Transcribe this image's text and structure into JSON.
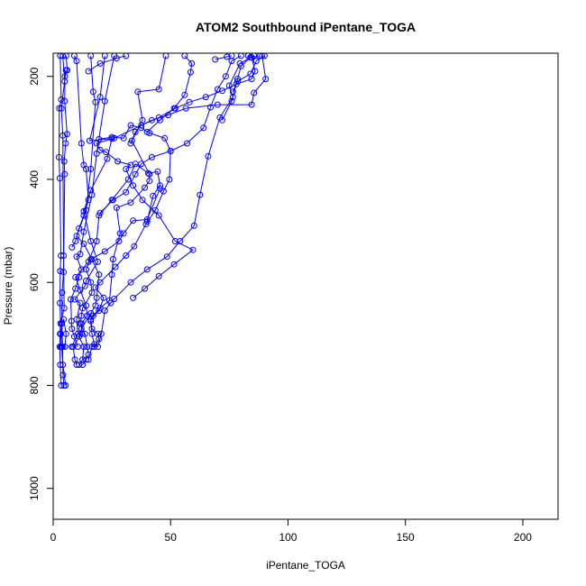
{
  "chart_data": {
    "type": "line",
    "title": "ATOM2 Southbound iPentane_TOGA",
    "xlabel": "iPentane_TOGA",
    "ylabel": "Pressure (mbar)",
    "xlim": [
      0,
      215
    ],
    "ylim": [
      1060,
      155
    ],
    "y_inverted": true,
    "xticks": [
      0,
      50,
      100,
      150,
      200
    ],
    "yticks": [
      200,
      400,
      600,
      800,
      1000
    ],
    "grid": false,
    "colors": {
      "series": "#0000ff",
      "axis": "#000000"
    },
    "series": [
      {
        "values": [
          [
            5.3,
            800
          ],
          [
            4.1,
            760
          ],
          [
            3.6,
            725
          ],
          [
            3.2,
            700
          ],
          [
            2.9,
            640
          ],
          [
            3.0,
            578
          ],
          [
            3.3,
            548
          ],
          [
            2.8,
            398
          ],
          [
            2.5,
            357
          ],
          [
            2.6,
            262
          ],
          [
            3.4,
            245
          ],
          [
            3.0,
            160
          ]
        ]
      },
      {
        "values": [
          [
            4.6,
            800
          ],
          [
            4.2,
            780
          ],
          [
            4.0,
            725
          ],
          [
            3.7,
            680
          ],
          [
            3.8,
            620
          ],
          [
            4.4,
            580
          ],
          [
            4.9,
            390
          ],
          [
            4.7,
            365
          ],
          [
            5.3,
            330
          ],
          [
            5.9,
            312
          ],
          [
            4.9,
            248
          ],
          [
            5.0,
            200
          ],
          [
            6.0,
            188
          ],
          [
            5.5,
            160
          ]
        ]
      },
      {
        "values": [
          [
            3.4,
            800
          ],
          [
            3.0,
            760
          ],
          [
            2.8,
            725
          ],
          [
            2.9,
            700
          ],
          [
            3.1,
            680
          ],
          [
            4.7,
            650
          ],
          [
            4.4,
            548
          ],
          [
            4.1,
            315
          ],
          [
            3.5,
            262
          ],
          [
            5.4,
            188
          ],
          [
            4.9,
            210
          ],
          [
            4.1,
            160
          ]
        ]
      },
      {
        "values": [
          [
            5.0,
            725
          ],
          [
            5.5,
            700
          ],
          [
            4.5,
            672
          ],
          [
            3.6,
            680
          ],
          [
            3.3,
            725
          ]
        ]
      },
      {
        "values": [
          [
            7.9,
            725
          ],
          [
            10.5,
            700
          ],
          [
            10.0,
            672
          ],
          [
            11.5,
            640
          ],
          [
            9.2,
            633
          ],
          [
            13.5,
            607
          ],
          [
            14.0,
            597
          ],
          [
            19.0,
            560
          ],
          [
            16.0,
            520
          ],
          [
            13.0,
            462
          ],
          [
            16.0,
            421
          ],
          [
            23.0,
            360
          ],
          [
            25.0,
            321
          ],
          [
            15.5,
            325
          ],
          [
            20.0,
            240
          ],
          [
            22.0,
            160
          ]
        ]
      },
      {
        "values": [
          [
            10.0,
            760
          ],
          [
            9.2,
            750
          ],
          [
            8.5,
            725
          ],
          [
            12.0,
            700
          ],
          [
            12.0,
            680
          ],
          [
            14.5,
            665
          ],
          [
            14.0,
            645
          ],
          [
            11.5,
            615
          ],
          [
            9.5,
            590
          ],
          [
            15.0,
            560
          ],
          [
            18.5,
            520
          ],
          [
            19.5,
            470
          ],
          [
            25.0,
            440
          ],
          [
            32.0,
            400
          ],
          [
            35.0,
            370
          ],
          [
            40.5,
            388
          ],
          [
            44.5,
            385
          ],
          [
            45.5,
            412
          ],
          [
            42.5,
            432
          ],
          [
            40.0,
            482
          ]
        ]
      },
      {
        "values": [
          [
            11.0,
            760
          ],
          [
            12.5,
            750
          ],
          [
            13.0,
            725
          ],
          [
            11.0,
            705
          ],
          [
            12.0,
            690
          ],
          [
            16.0,
            660
          ],
          [
            18.0,
            645
          ],
          [
            18.5,
            630
          ],
          [
            19.5,
            585
          ],
          [
            16.5,
            555
          ],
          [
            13.0,
            525
          ],
          [
            10.0,
            510
          ],
          [
            14.0,
            460
          ],
          [
            16.0,
            380
          ],
          [
            18.0,
            250
          ],
          [
            17.0,
            230
          ],
          [
            16.0,
            160
          ]
        ]
      },
      {
        "values": [
          [
            12.5,
            760
          ],
          [
            14.0,
            750
          ],
          [
            15.0,
            740
          ],
          [
            14.5,
            725
          ],
          [
            13.5,
            700
          ],
          [
            11.5,
            680
          ],
          [
            12.0,
            665
          ],
          [
            12.5,
            650
          ],
          [
            16.5,
            620
          ],
          [
            16.0,
            600
          ],
          [
            14.0,
            575
          ],
          [
            16.0,
            555
          ],
          [
            22.0,
            540
          ],
          [
            28.0,
            520
          ],
          [
            30.0,
            505
          ],
          [
            34.0,
            480
          ],
          [
            40.0,
            478
          ],
          [
            45.5,
            418
          ]
        ]
      },
      {
        "values": [
          [
            15.0,
            750
          ],
          [
            16.5,
            725
          ],
          [
            17.5,
            720
          ],
          [
            16.5,
            700
          ],
          [
            16.0,
            675
          ],
          [
            17.0,
            665
          ],
          [
            20.0,
            650
          ],
          [
            24.0,
            635
          ],
          [
            25.0,
            585
          ],
          [
            25.5,
            555
          ],
          [
            28.5,
            505
          ],
          [
            27.0,
            455
          ],
          [
            33.0,
            445
          ],
          [
            39.0,
            416
          ],
          [
            41.0,
            403
          ],
          [
            41.0,
            390
          ],
          [
            33.5,
            325
          ],
          [
            38.0,
            285
          ],
          [
            36.0,
            230
          ],
          [
            45.0,
            225
          ],
          [
            48.0,
            160
          ]
        ]
      },
      {
        "values": [
          [
            17.5,
            725
          ],
          [
            19.5,
            710
          ],
          [
            19.0,
            700
          ],
          [
            16.5,
            690
          ],
          [
            16.0,
            672
          ],
          [
            19.5,
            655
          ],
          [
            21.5,
            630
          ],
          [
            18.0,
            610
          ],
          [
            20.0,
            600
          ],
          [
            26.5,
            570
          ],
          [
            31.0,
            548
          ],
          [
            34.5,
            530
          ],
          [
            39.5,
            487
          ],
          [
            43.5,
            460
          ],
          [
            47.0,
            423
          ],
          [
            49.5,
            400
          ],
          [
            50.0,
            345
          ],
          [
            47.5,
            320
          ],
          [
            41.0,
            310
          ],
          [
            37.5,
            300
          ],
          [
            33.0,
            295
          ],
          [
            30.0,
            320
          ],
          [
            25.0,
            318
          ],
          [
            19.5,
            322
          ]
        ]
      },
      {
        "values": [
          [
            19.0,
            725
          ],
          [
            20.5,
            700
          ],
          [
            22.0,
            655
          ],
          [
            24.5,
            640
          ],
          [
            26.0,
            632
          ],
          [
            33.0,
            600
          ],
          [
            40.0,
            575
          ],
          [
            48.5,
            550
          ],
          [
            54.0,
            520
          ],
          [
            60.0,
            490
          ],
          [
            62.5,
            430
          ],
          [
            66.0,
            355
          ],
          [
            71.0,
            280
          ],
          [
            76.5,
            240
          ],
          [
            75.0,
            218
          ],
          [
            79.5,
            175
          ],
          [
            85.5,
            160
          ]
        ]
      },
      {
        "values": [
          [
            34.0,
            630
          ],
          [
            39.0,
            612
          ],
          [
            45.0,
            588
          ],
          [
            51.5,
            565
          ],
          [
            59.5,
            537
          ],
          [
            52.0,
            520
          ],
          [
            45.0,
            470
          ],
          [
            38.0,
            440
          ],
          [
            34.0,
            412
          ],
          [
            31.0,
            380
          ],
          [
            33.0,
            372
          ],
          [
            27.5,
            365
          ],
          [
            22.5,
            347
          ],
          [
            20.0,
            343
          ],
          [
            18.5,
            330
          ],
          [
            26.0,
            320
          ],
          [
            42.0,
            285
          ],
          [
            49.0,
            275
          ],
          [
            56.5,
            262
          ],
          [
            70.0,
            255
          ],
          [
            84.5,
            255
          ],
          [
            85.5,
            232
          ],
          [
            90.5,
            205
          ],
          [
            89.0,
            160
          ]
        ]
      },
      {
        "values": [
          [
            20.0,
            465
          ],
          [
            25.5,
            440
          ],
          [
            31.0,
            425
          ],
          [
            35.0,
            390
          ],
          [
            37.5,
            370
          ],
          [
            42.0,
            357
          ],
          [
            50.0,
            345
          ],
          [
            57.0,
            330
          ],
          [
            64.0,
            300
          ],
          [
            67.0,
            260
          ],
          [
            70.0,
            225
          ],
          [
            73.5,
            200
          ],
          [
            76.0,
            170
          ],
          [
            80.0,
            160
          ]
        ]
      },
      {
        "values": [
          [
            33.0,
            330
          ],
          [
            35.0,
            308
          ],
          [
            37.5,
            295
          ],
          [
            45.0,
            280
          ],
          [
            52.0,
            262
          ],
          [
            58.0,
            250
          ],
          [
            65.0,
            240
          ],
          [
            72.0,
            228
          ],
          [
            78.0,
            215
          ],
          [
            84.5,
            205
          ],
          [
            86.0,
            190
          ],
          [
            84.5,
            163
          ],
          [
            88.0,
            160
          ]
        ]
      },
      {
        "values": [
          [
            40.0,
            308
          ],
          [
            45.5,
            285
          ],
          [
            51.5,
            262
          ],
          [
            56.0,
            236
          ],
          [
            58.5,
            192
          ],
          [
            59.0,
            175
          ],
          [
            56.0,
            160
          ]
        ]
      },
      {
        "values": [
          [
            72.0,
            285
          ],
          [
            76.0,
            248
          ],
          [
            78.5,
            205
          ],
          [
            80.0,
            180
          ],
          [
            84.0,
            163
          ],
          [
            83.0,
            160
          ]
        ]
      },
      {
        "values": [
          [
            76.5,
            230
          ],
          [
            78.5,
            210
          ],
          [
            84.0,
            195
          ],
          [
            86.5,
            170
          ],
          [
            90.0,
            160
          ]
        ]
      },
      {
        "values": [
          [
            15.0,
            190
          ],
          [
            20.0,
            175
          ],
          [
            27.0,
            165
          ],
          [
            31.0,
            160
          ]
        ]
      },
      {
        "values": [
          [
            69.0,
            167
          ],
          [
            74.0,
            162
          ],
          [
            76.0,
            160
          ]
        ]
      },
      {
        "values": [
          [
            8.0,
            532
          ],
          [
            9.5,
            520
          ],
          [
            11.0,
            495
          ],
          [
            13.0,
            470
          ],
          [
            15.0,
            440
          ],
          [
            14.0,
            380
          ],
          [
            13.0,
            372
          ],
          [
            12.0,
            330
          ],
          [
            10.0,
            170
          ],
          [
            9.0,
            160
          ]
        ]
      },
      {
        "values": [
          [
            10.5,
            725
          ],
          [
            9.0,
            705
          ],
          [
            8.0,
            690
          ],
          [
            7.8,
            675
          ],
          [
            7.5,
            633
          ],
          [
            9.5,
            612
          ],
          [
            11.0,
            590
          ],
          [
            12.0,
            575
          ],
          [
            10.0,
            550
          ],
          [
            11.5,
            545
          ],
          [
            13.0,
            502
          ],
          [
            16.5,
            430
          ],
          [
            18.5,
            350
          ],
          [
            22.0,
            248
          ],
          [
            26.0,
            160
          ]
        ]
      }
    ]
  }
}
